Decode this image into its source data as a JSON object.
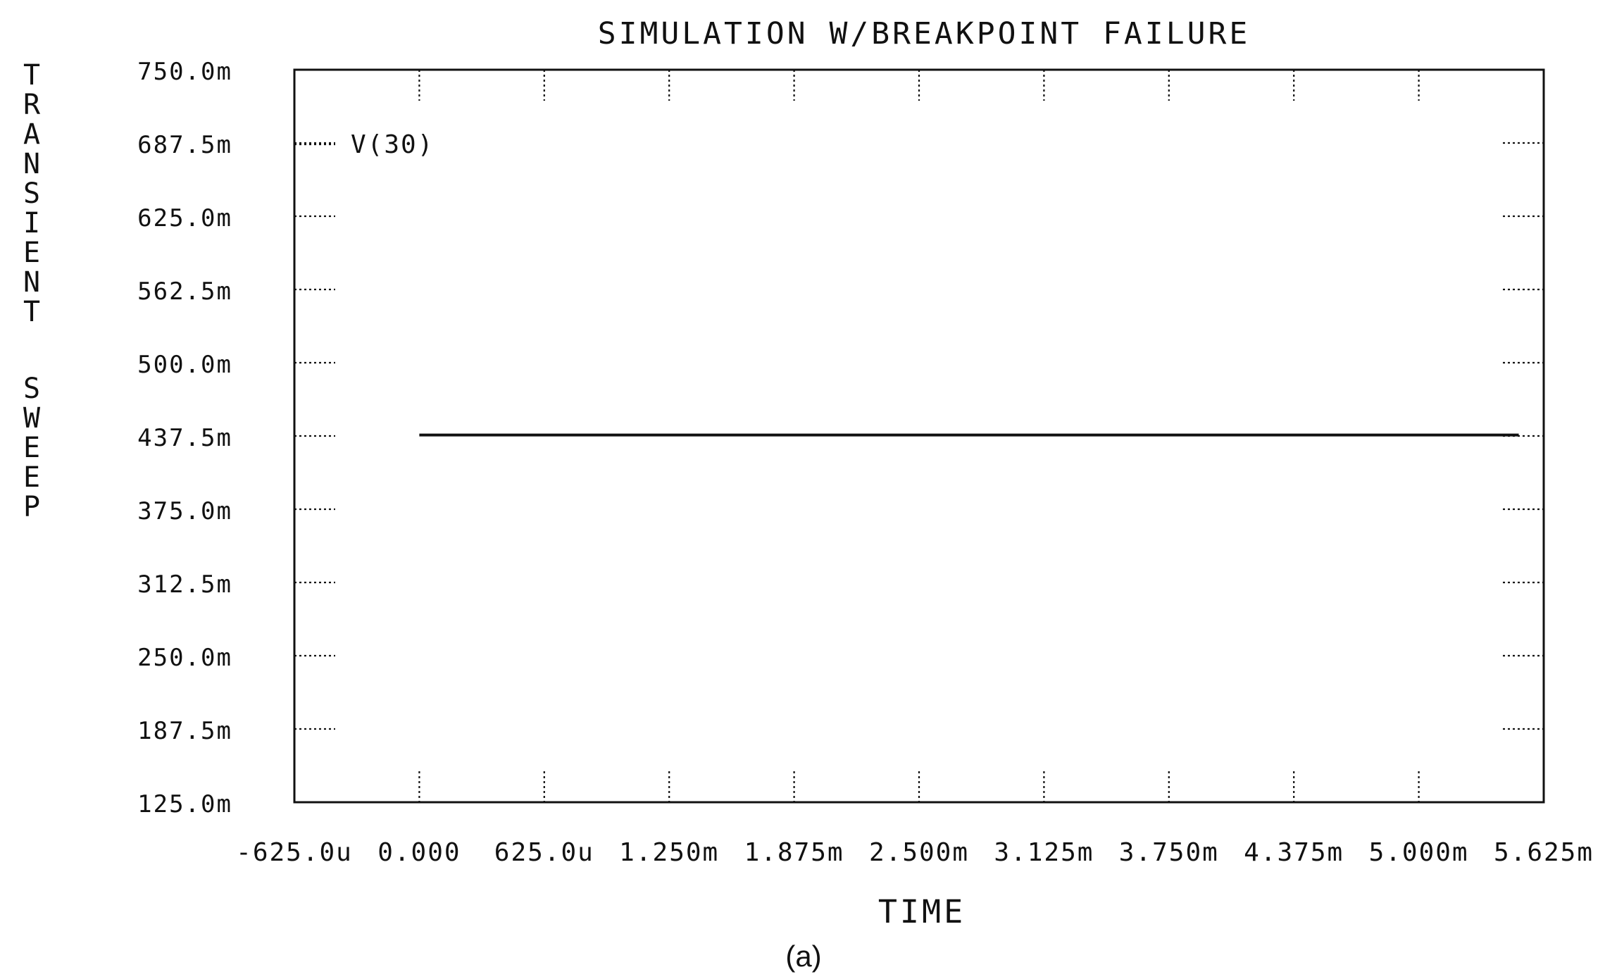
{
  "chart_data": {
    "type": "line",
    "title": "SIMULATION W/BREAKPOINT FAILURE",
    "xlabel": "TIME",
    "ylabel": "TRANSIENT SWEEP",
    "xlim": [
      -0.000625,
      0.005625
    ],
    "ylim": [
      0.125,
      0.75
    ],
    "x_tick_values": [
      -0.000625,
      0,
      0.000625,
      0.00125,
      0.001875,
      0.0025,
      0.003125,
      0.00375,
      0.004375,
      0.005,
      0.005625
    ],
    "x_tick_labels": [
      "-625.0u",
      "0.000",
      "625.0u",
      "1.250m",
      "1.875m",
      "2.500m",
      "3.125m",
      "3.750m",
      "4.375m",
      "5.000m",
      "5.625m"
    ],
    "y_tick_values": [
      0.75,
      0.6875,
      0.625,
      0.5625,
      0.5,
      0.4375,
      0.375,
      0.3125,
      0.25,
      0.1875,
      0.125
    ],
    "y_tick_labels": [
      "750.0m",
      "687.5m",
      "625.0m",
      "562.5m",
      "500.0m",
      "437.5m",
      "375.0m",
      "312.5m",
      "250.0m",
      "187.5m",
      "125.0m"
    ],
    "grid": "dotted tick marks",
    "legend": "top-left",
    "series": [
      {
        "name": "V(30)",
        "x": [
          0,
          0.0055
        ],
        "y": [
          0.4383,
          0.4383
        ],
        "color": "#111111"
      }
    ]
  },
  "caption": "(a)"
}
